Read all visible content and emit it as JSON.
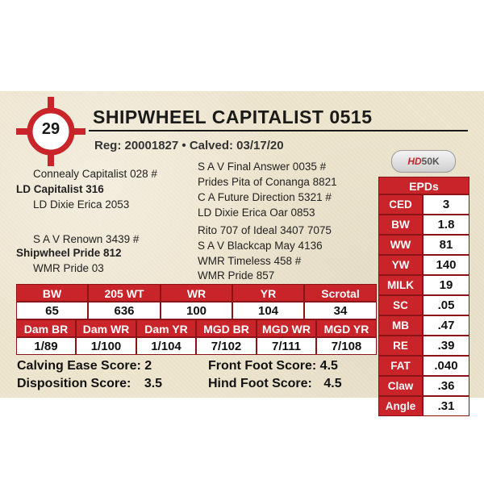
{
  "lot_number": "29",
  "name": "SHIPWHEEL CAPITALIST 0515",
  "reg_line": "Reg: 20001827 • Calved: 03/17/20",
  "logo": {
    "hd": "HD",
    "rest": "50K"
  },
  "colors": {
    "accent": "#c8242a",
    "background": "#efe6cf"
  },
  "pedigree": {
    "sire_sire": "Connealy Capitalist 028 #",
    "sire": "LD Capitalist 316",
    "sire_dam": "LD Dixie Erica 2053",
    "dam_sire": "S A V Renown 3439 #",
    "dam": "Shipwheel Pride 812",
    "dam_dam": "WMR Pride 03",
    "far_right": [
      "S A V Final Answer 0035 #",
      "Prides Pita of Conanga 8821",
      "C A Future Direction 5321 #",
      "LD Dixie Erica Oar 0853",
      "Rito 707 of Ideal 3407 7075",
      "S A V Blackcap May 4136",
      "WMR Timeless 458 #",
      "WMR Pride 857"
    ]
  },
  "epds": {
    "header": "EPDs",
    "rows": [
      {
        "k": "CED",
        "v": "3"
      },
      {
        "k": "BW",
        "v": "1.8"
      },
      {
        "k": "WW",
        "v": "81"
      },
      {
        "k": "YW",
        "v": "140"
      },
      {
        "k": "MILK",
        "v": "19"
      },
      {
        "k": "SC",
        "v": ".05"
      },
      {
        "k": "MB",
        "v": ".47"
      },
      {
        "k": "RE",
        "v": ".39"
      },
      {
        "k": "FAT",
        "v": ".040"
      },
      {
        "k": "Claw",
        "v": ".36"
      },
      {
        "k": "Angle",
        "v": ".31"
      }
    ]
  },
  "performance": {
    "row1_headers": [
      "BW",
      "205 WT",
      "WR",
      "YR",
      "Scrotal"
    ],
    "row1_values": [
      "65",
      "636",
      "100",
      "104",
      "34"
    ],
    "row2_headers": [
      "Dam BR",
      "Dam WR",
      "Dam YR",
      "MGD BR",
      "MGD WR",
      "MGD YR"
    ],
    "row2_values": [
      "1/89",
      "1/100",
      "1/104",
      "7/102",
      "7/111",
      "7/108"
    ]
  },
  "scores": {
    "calving_ease_label": "Calving Ease Score:",
    "calving_ease_value": "2",
    "disposition_label": "Disposition Score:",
    "disposition_value": "3.5",
    "front_foot_label": "Front Foot Score:",
    "front_foot_value": "4.5",
    "hind_foot_label": "Hind Foot Score:",
    "hind_foot_value": "4.5"
  }
}
